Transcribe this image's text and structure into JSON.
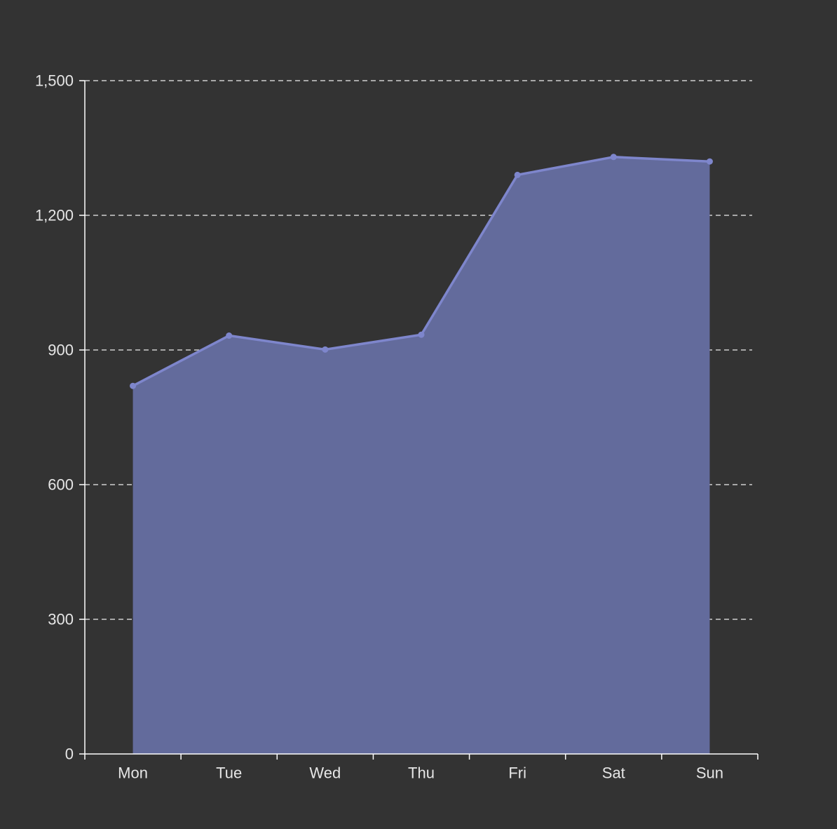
{
  "chart_data": {
    "type": "area",
    "categories": [
      "Mon",
      "Tue",
      "Wed",
      "Thu",
      "Fri",
      "Sat",
      "Sun"
    ],
    "series": [
      {
        "values": [
          820,
          932,
          901,
          934,
          1290,
          1330,
          1320
        ]
      }
    ],
    "ylim": [
      0,
      1500
    ],
    "yticks": [
      0,
      300,
      600,
      900,
      1200,
      1500
    ],
    "ytick_labels": [
      "0",
      "300",
      "600",
      "900",
      "1,200",
      "1,500"
    ],
    "grid": true,
    "legend": "none",
    "colors": {
      "background": "#333333",
      "line": "#7e86cc",
      "area": "#636b9c",
      "axis": "#ffffff",
      "grid": "#d0d0d0",
      "text": "#e6e6e6"
    }
  }
}
